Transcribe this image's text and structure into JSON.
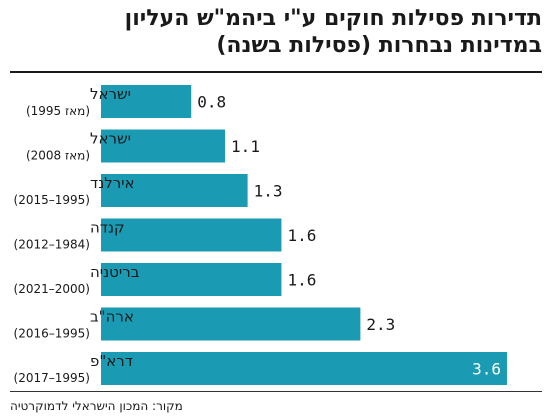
{
  "title_lines": [
    "תדירות פסילות חוקים ע\"י ביהמ\"ש העליון",
    "במדינות נבחרות (פסילות בשנה)"
  ],
  "source": "מקור: המכון הישראלי לדמוקרטיה",
  "colors": {
    "bar": "#1a9bb3",
    "text": "#1a1a1a",
    "value_inside": "#ffffff"
  },
  "chart_data": {
    "type": "bar",
    "orientation": "horizontal",
    "title": "תדירות פסילות חוקים ע\"י ביהמ\"ש העליון במדינות נבחרות (פסילות בשנה)",
    "categories": [
      {
        "name": "ישראל",
        "period": "(מאז 1995)"
      },
      {
        "name": "ישראל",
        "period": "(מאז 2008)"
      },
      {
        "name": "אירלנד",
        "period": "(2015–1995)"
      },
      {
        "name": "קנדה",
        "period": "(2012–1984)"
      },
      {
        "name": "בריטניה",
        "period": "(2021–2000)"
      },
      {
        "name": "ארה\"ב",
        "period": "(2016–1995)"
      },
      {
        "name": "דרא\"פ",
        "period": "(2017–1995)"
      }
    ],
    "values": [
      0.8,
      1.1,
      1.3,
      1.6,
      1.6,
      2.3,
      3.6
    ],
    "value_labels": [
      "0.8",
      "1.1",
      "1.3",
      "1.6",
      "1.6",
      "2.3",
      "3.6"
    ],
    "xlim": [
      0,
      3.6
    ],
    "grid": false,
    "legend": "none"
  }
}
